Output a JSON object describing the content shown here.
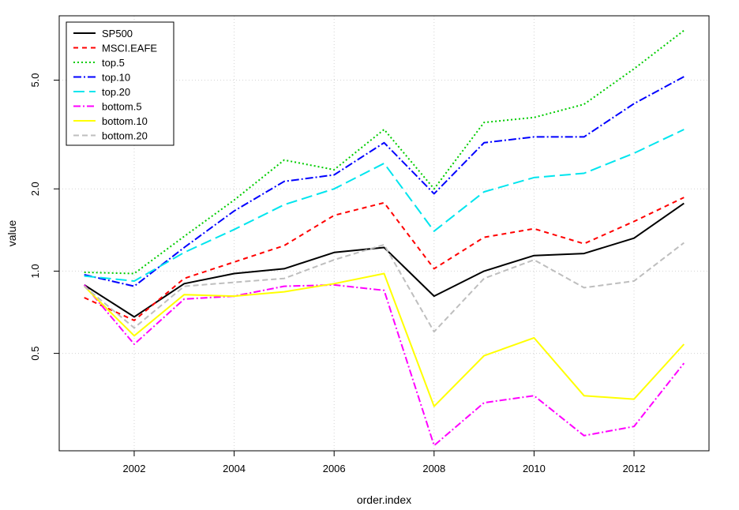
{
  "chart_data": {
    "type": "line",
    "title": "",
    "xlabel": "order.index",
    "ylabel": "value",
    "y_scale": "log",
    "x": [
      2001,
      2002,
      2003,
      2004,
      2005,
      2006,
      2007,
      2008,
      2009,
      2010,
      2011,
      2012,
      2013
    ],
    "xlim": [
      2000.5,
      2013.5
    ],
    "ylim": [
      0.22,
      8.6
    ],
    "x_ticks": [
      2002,
      2004,
      2006,
      2008,
      2010,
      2012
    ],
    "x_tick_labels": [
      "2002",
      "2004",
      "2006",
      "2008",
      "2010",
      "2012"
    ],
    "y_ticks": [
      0.5,
      1.0,
      2.0,
      5.0
    ],
    "y_tick_labels": [
      "0.5",
      "1.0",
      "2.0",
      "5.0"
    ],
    "grid": true,
    "legend_position": "top-left",
    "series": [
      {
        "name": "SP500",
        "color": "#000000",
        "dash": "",
        "width": 2,
        "values": [
          0.89,
          0.68,
          0.9,
          0.98,
          1.02,
          1.17,
          1.22,
          0.81,
          1.0,
          1.14,
          1.16,
          1.32,
          1.77
        ]
      },
      {
        "name": "MSCI.EAFE",
        "color": "#ff0000",
        "dash": "6,5",
        "width": 2,
        "values": [
          0.8,
          0.66,
          0.94,
          1.08,
          1.24,
          1.6,
          1.78,
          1.02,
          1.33,
          1.43,
          1.26,
          1.52,
          1.86
        ]
      },
      {
        "name": "top.5",
        "color": "#00cc00",
        "dash": "2,3",
        "width": 2,
        "values": [
          0.99,
          0.98,
          1.34,
          1.82,
          2.55,
          2.35,
          3.3,
          2.0,
          3.5,
          3.65,
          4.08,
          5.5,
          7.6
        ]
      },
      {
        "name": "top.10",
        "color": "#0000ff",
        "dash": "10,3,2,3",
        "width": 2,
        "values": [
          0.97,
          0.88,
          1.22,
          1.66,
          2.13,
          2.25,
          2.95,
          1.92,
          2.95,
          3.1,
          3.1,
          4.1,
          5.15
        ]
      },
      {
        "name": "top.20",
        "color": "#00e5ee",
        "dash": "14,6",
        "width": 2,
        "values": [
          0.96,
          0.92,
          1.17,
          1.42,
          1.75,
          2.0,
          2.48,
          1.4,
          1.95,
          2.2,
          2.28,
          2.7,
          3.3
        ]
      },
      {
        "name": "bottom.5",
        "color": "#ff00ff",
        "dash": "9,3,2,3",
        "width": 2,
        "values": [
          0.89,
          0.54,
          0.79,
          0.81,
          0.88,
          0.89,
          0.85,
          0.23,
          0.33,
          0.35,
          0.25,
          0.27,
          0.46
        ]
      },
      {
        "name": "bottom.10",
        "color": "#ffff00",
        "dash": "",
        "width": 2,
        "values": [
          0.88,
          0.58,
          0.82,
          0.81,
          0.84,
          0.9,
          0.98,
          0.32,
          0.49,
          0.57,
          0.35,
          0.34,
          0.54
        ]
      },
      {
        "name": "bottom.20",
        "color": "#bebebe",
        "dash": "7,4",
        "width": 2,
        "values": [
          0.88,
          0.62,
          0.88,
          0.91,
          0.94,
          1.1,
          1.25,
          0.6,
          0.94,
          1.1,
          0.87,
          0.92,
          1.27
        ]
      }
    ]
  }
}
